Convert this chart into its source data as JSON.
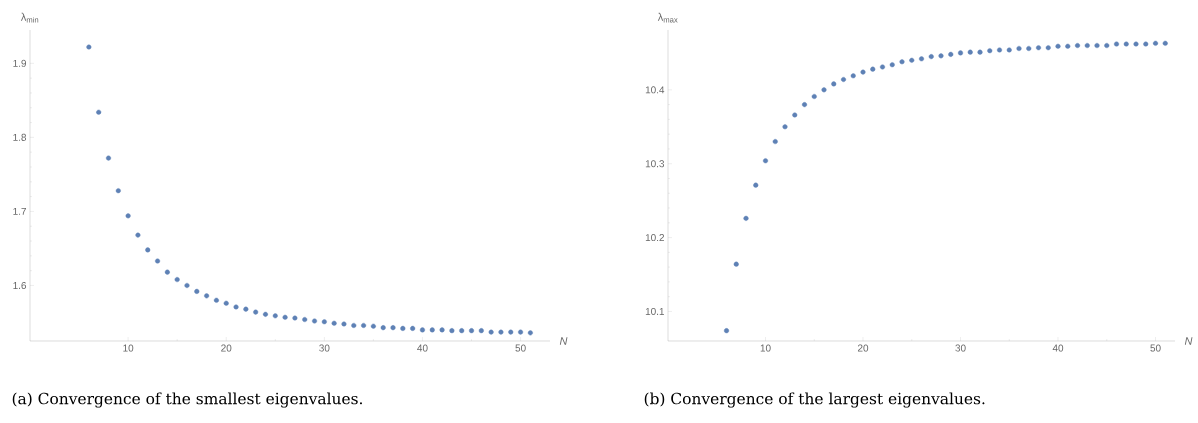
{
  "chart_data": [
    {
      "type": "scatter",
      "xlabel": "N",
      "ylabel": "λ$_{min}$",
      "marker": "circle",
      "color": "#5e81b5",
      "xlim": [
        0,
        53
      ],
      "ylim": [
        1.525,
        1.945
      ],
      "xticks": [
        10,
        20,
        30,
        40,
        50
      ],
      "yticks": [
        1.6,
        1.7,
        1.8,
        1.9
      ],
      "x": [
        6,
        7,
        8,
        9,
        10,
        11,
        12,
        13,
        14,
        15,
        16,
        17,
        18,
        19,
        20,
        21,
        22,
        23,
        24,
        25,
        26,
        27,
        28,
        29,
        30,
        31,
        32,
        33,
        34,
        35,
        36,
        37,
        38,
        39,
        40,
        41,
        42,
        43,
        44,
        45,
        46,
        47,
        48,
        49,
        50,
        51
      ],
      "values": [
        1.922,
        1.834,
        1.772,
        1.728,
        1.694,
        1.668,
        1.648,
        1.633,
        1.618,
        1.608,
        1.6,
        1.592,
        1.586,
        1.58,
        1.576,
        1.571,
        1.568,
        1.564,
        1.561,
        1.559,
        1.557,
        1.556,
        1.554,
        1.552,
        1.551,
        1.549,
        1.548,
        1.546,
        1.546,
        1.545,
        1.543,
        1.543,
        1.542,
        1.542,
        1.54,
        1.54,
        1.54,
        1.539,
        1.539,
        1.539,
        1.539,
        1.537,
        1.537,
        1.537,
        1.537,
        1.536
      ],
      "annotations": [
        "(a) Convergence of the smallest eigenvalues."
      ]
    },
    {
      "type": "scatter",
      "xlabel": "N",
      "ylabel": "λ$_{max}$",
      "marker": "circle",
      "color": "#5e81b5",
      "xlim": [
        0,
        52
      ],
      "ylim": [
        10.06,
        10.481
      ],
      "xticks": [
        10,
        20,
        30,
        40,
        50
      ],
      "yticks": [
        10.1,
        10.2,
        10.3,
        10.4
      ],
      "x": [
        6,
        7,
        8,
        9,
        10,
        11,
        12,
        13,
        14,
        15,
        16,
        17,
        18,
        19,
        20,
        21,
        22,
        23,
        24,
        25,
        26,
        27,
        28,
        29,
        30,
        31,
        32,
        33,
        34,
        35,
        36,
        37,
        38,
        39,
        40,
        41,
        42,
        43,
        44,
        45,
        46,
        47,
        48,
        49,
        50,
        51
      ],
      "values": [
        10.074,
        10.164,
        10.226,
        10.271,
        10.304,
        10.33,
        10.35,
        10.366,
        10.38,
        10.391,
        10.4,
        10.408,
        10.414,
        10.419,
        10.424,
        10.428,
        10.431,
        10.434,
        10.438,
        10.44,
        10.442,
        10.445,
        10.446,
        10.448,
        10.45,
        10.451,
        10.451,
        10.453,
        10.454,
        10.454,
        10.456,
        10.456,
        10.457,
        10.457,
        10.459,
        10.459,
        10.46,
        10.46,
        10.46,
        10.46,
        10.462,
        10.462,
        10.462,
        10.462,
        10.463,
        10.463
      ],
      "annotations": [
        "(b) Convergence of the largest eigenvalues."
      ]
    }
  ]
}
